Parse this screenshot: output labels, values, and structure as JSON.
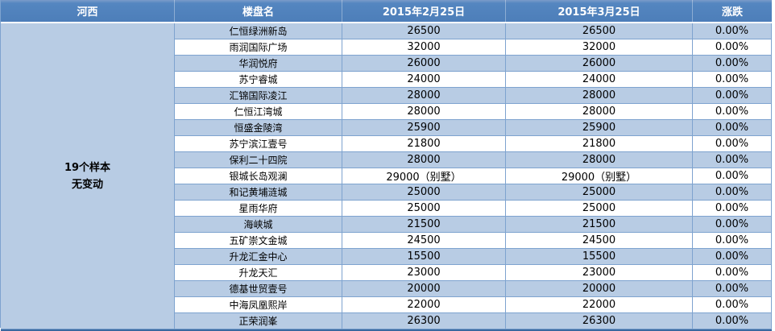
{
  "table": {
    "columns": [
      "河西",
      "楼盘名",
      "2015年2月25日",
      "2015年3月25日",
      "涨跌"
    ],
    "region": {
      "summary_line1": "19个样本",
      "summary_line2": "无变动"
    },
    "rows": [
      {
        "name": "仁恒绿洲新岛",
        "feb": "26500",
        "mar": "26500",
        "change": "0.00%"
      },
      {
        "name": "雨润国际广场",
        "feb": "32000",
        "mar": "32000",
        "change": "0.00%"
      },
      {
        "name": "华润悦府",
        "feb": "26000",
        "mar": "26000",
        "change": "0.00%"
      },
      {
        "name": "苏宁睿城",
        "feb": "24000",
        "mar": "24000",
        "change": "0.00%"
      },
      {
        "name": "汇锦国际凌江",
        "feb": "28000",
        "mar": "28000",
        "change": "0.00%"
      },
      {
        "name": "仁恒江湾城",
        "feb": "28000",
        "mar": "28000",
        "change": "0.00%"
      },
      {
        "name": "恒盛金陵湾",
        "feb": "25900",
        "mar": "25900",
        "change": "0.00%"
      },
      {
        "name": "苏宁滨江壹号",
        "feb": "21800",
        "mar": "21800",
        "change": "0.00%"
      },
      {
        "name": "保利二十四院",
        "feb": "28000",
        "mar": "28000",
        "change": "0.00%"
      },
      {
        "name": "银城长岛观澜",
        "feb": "29000（别墅）",
        "mar": "29000（别墅）",
        "change": "0.00%"
      },
      {
        "name": "和记黄埔涟城",
        "feb": "25000",
        "mar": "25000",
        "change": "0.00%"
      },
      {
        "name": "星雨华府",
        "feb": "25000",
        "mar": "25000",
        "change": "0.00%"
      },
      {
        "name": "海峡城",
        "feb": "21500",
        "mar": "21500",
        "change": "0.00%"
      },
      {
        "name": "五矿崇文金城",
        "feb": "24500",
        "mar": "24500",
        "change": "0.00%"
      },
      {
        "name": "升龙汇金中心",
        "feb": "15500",
        "mar": "15500",
        "change": "0.00%"
      },
      {
        "name": "升龙天汇",
        "feb": "23000",
        "mar": "23000",
        "change": "0.00%"
      },
      {
        "name": "德基世贸壹号",
        "feb": "20000",
        "mar": "20000",
        "change": "0.00%"
      },
      {
        "name": "中海凤凰熙岸",
        "feb": "22000",
        "mar": "22000",
        "change": "0.00%"
      },
      {
        "name": "正荣润峯",
        "feb": "26300",
        "mar": "26300",
        "change": "0.00%"
      }
    ]
  },
  "colors": {
    "header_bg": "#4f81bd",
    "band_fill": "#b8cce4",
    "grid_border": "#7ea3cf",
    "bottom_border": "#39689f",
    "header_text": "#ffffff"
  }
}
